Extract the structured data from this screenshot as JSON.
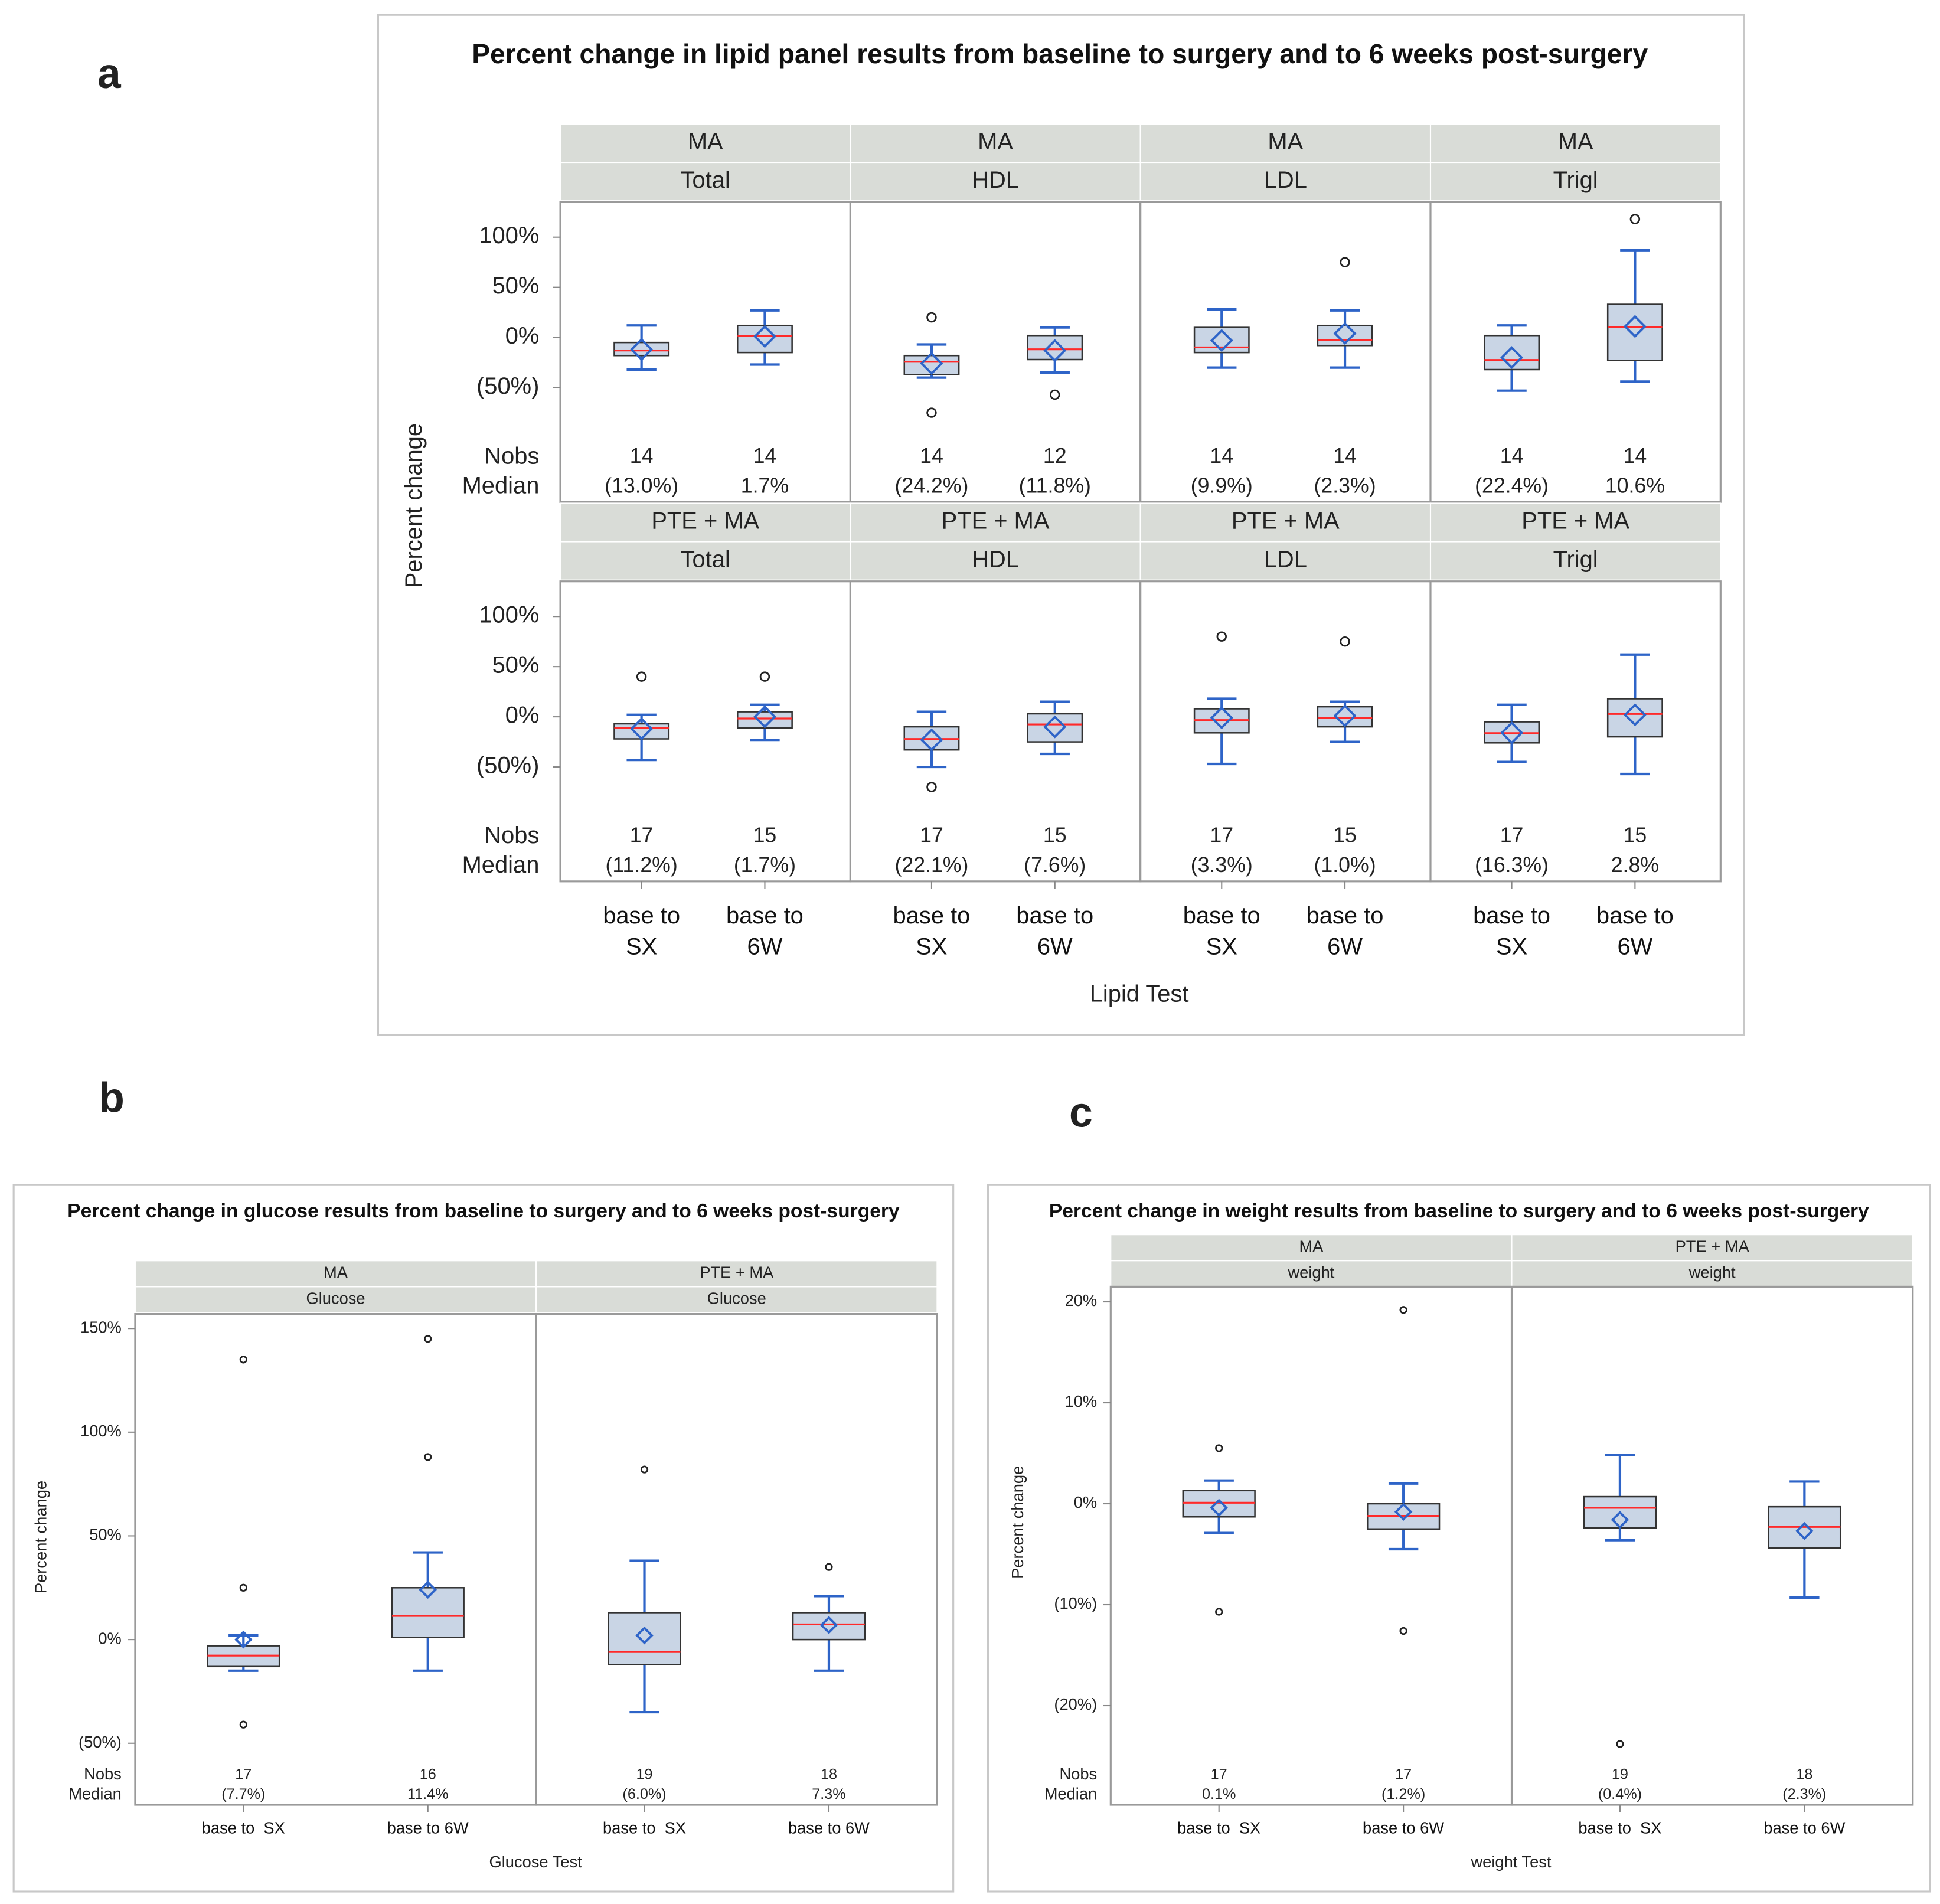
{
  "chart_data": [
    {
      "type": "box",
      "panel_label": "a",
      "title": "Percent change in lipid panel results from baseline to surgery and to 6 weeks post-surgery",
      "y_label": "Percent change",
      "x_label": "Lipid Test",
      "categories": [
        "base to SX",
        "base to 6W"
      ],
      "stat_labels": [
        "Nobs",
        "Median"
      ],
      "ylim": [
        -80,
        135
      ],
      "yticks": [
        {
          "value": 100,
          "label": "100%"
        },
        {
          "value": 50,
          "label": "50%"
        },
        {
          "value": 0,
          "label": "0%"
        },
        {
          "value": -50,
          "label": "(50%)"
        }
      ],
      "box_color": "#c9d5e5",
      "whisker_color": "#2e64c8",
      "median_color": "#ff2a2a",
      "mean_color": "#2e64c8",
      "outlier_color": "#222222",
      "header_color": "#d9dcd7",
      "panels": [
        {
          "group": "MA",
          "test": "Total",
          "boxes": [
            {
              "min": -32,
              "q1": -18,
              "median": -13.0,
              "median_label": "(13.0%)",
              "q3": -5,
              "max": 12,
              "mean": -12,
              "outliers": [],
              "nobs": 14
            },
            {
              "min": -27,
              "q1": -15,
              "median": 1.7,
              "median_label": "1.7%",
              "q3": 12,
              "max": 27,
              "mean": 1,
              "outliers": [],
              "nobs": 14
            }
          ]
        },
        {
          "group": "MA",
          "test": "HDL",
          "boxes": [
            {
              "min": -40,
              "q1": -37,
              "median": -24.2,
              "median_label": "(24.2%)",
              "q3": -18,
              "max": -7,
              "mean": -26,
              "outliers": [
                20,
                -75
              ],
              "nobs": 14
            },
            {
              "min": -35,
              "q1": -22,
              "median": -11.8,
              "median_label": "(11.8%)",
              "q3": 2,
              "max": 10,
              "mean": -13,
              "outliers": [
                -57
              ],
              "nobs": 12
            }
          ]
        },
        {
          "group": "MA",
          "test": "LDL",
          "boxes": [
            {
              "min": -30,
              "q1": -15,
              "median": -9.9,
              "median_label": "(9.9%)",
              "q3": 10,
              "max": 28,
              "mean": -3,
              "outliers": [],
              "nobs": 14
            },
            {
              "min": -30,
              "q1": -8,
              "median": -2.3,
              "median_label": "(2.3%)",
              "q3": 12,
              "max": 27,
              "mean": 4,
              "outliers": [
                75
              ],
              "nobs": 14
            }
          ]
        },
        {
          "group": "MA",
          "test": "Trigl",
          "boxes": [
            {
              "min": -53,
              "q1": -32,
              "median": -22.4,
              "median_label": "(22.4%)",
              "q3": 2,
              "max": 12,
              "mean": -20,
              "outliers": [],
              "nobs": 14
            },
            {
              "min": -44,
              "q1": -23,
              "median": 10.6,
              "median_label": "10.6%",
              "q3": 33,
              "max": 87,
              "mean": 11,
              "outliers": [
                118
              ],
              "nobs": 14
            }
          ]
        },
        {
          "group": "PTE + MA",
          "test": "Total",
          "boxes": [
            {
              "min": -43,
              "q1": -22,
              "median": -11.2,
              "median_label": "(11.2%)",
              "q3": -7,
              "max": 2,
              "mean": -12,
              "outliers": [
                40
              ],
              "nobs": 17
            },
            {
              "min": -23,
              "q1": -11,
              "median": -1.7,
              "median_label": "(1.7%)",
              "q3": 5,
              "max": 12,
              "mean": 0,
              "outliers": [
                40
              ],
              "nobs": 15
            }
          ]
        },
        {
          "group": "PTE + MA",
          "test": "HDL",
          "boxes": [
            {
              "min": -50,
              "q1": -33,
              "median": -22.1,
              "median_label": "(22.1%)",
              "q3": -10,
              "max": 5,
              "mean": -23,
              "outliers": [
                -70
              ],
              "nobs": 17
            },
            {
              "min": -37,
              "q1": -25,
              "median": -7.6,
              "median_label": "(7.6%)",
              "q3": 3,
              "max": 15,
              "mean": -10,
              "outliers": [],
              "nobs": 15
            }
          ]
        },
        {
          "group": "PTE + MA",
          "test": "LDL",
          "boxes": [
            {
              "min": -47,
              "q1": -16,
              "median": -3.3,
              "median_label": "(3.3%)",
              "q3": 8,
              "max": 18,
              "mean": -1,
              "outliers": [
                80
              ],
              "nobs": 17
            },
            {
              "min": -25,
              "q1": -10,
              "median": -1.0,
              "median_label": "(1.0%)",
              "q3": 10,
              "max": 15,
              "mean": 1,
              "outliers": [
                75
              ],
              "nobs": 15
            }
          ]
        },
        {
          "group": "PTE + MA",
          "test": "Trigl",
          "boxes": [
            {
              "min": -45,
              "q1": -26,
              "median": -16.3,
              "median_label": "(16.3%)",
              "q3": -5,
              "max": 12,
              "mean": -16,
              "outliers": [],
              "nobs": 17
            },
            {
              "min": -57,
              "q1": -20,
              "median": 2.8,
              "median_label": "2.8%",
              "q3": 18,
              "max": 62,
              "mean": 2,
              "outliers": [],
              "nobs": 15
            }
          ]
        }
      ]
    },
    {
      "type": "box",
      "panel_label": "b",
      "title": "Percent change in glucose results from baseline to surgery and to 6 weeks post-surgery",
      "y_label": "Percent change",
      "x_label": "Glucose Test",
      "categories": [
        "base to  SX",
        "base to 6W"
      ],
      "stat_labels": [
        "Nobs",
        "Median"
      ],
      "ylim": [
        -55,
        157
      ],
      "yticks": [
        {
          "value": 150,
          "label": "150%"
        },
        {
          "value": 100,
          "label": "100%"
        },
        {
          "value": 50,
          "label": "50%"
        },
        {
          "value": 0,
          "label": "0%"
        },
        {
          "value": -50,
          "label": "(50%)"
        }
      ],
      "box_color": "#c9d5e5",
      "whisker_color": "#2e64c8",
      "median_color": "#ff2a2a",
      "mean_color": "#2e64c8",
      "outlier_color": "#222222",
      "header_color": "#d9dcd7",
      "panels": [
        {
          "group": "MA",
          "test": "Glucose",
          "boxes": [
            {
              "min": -15,
              "q1": -13,
              "median": -7.7,
              "median_label": "(7.7%)",
              "q3": -3,
              "max": 2,
              "mean": 0,
              "outliers": [
                135,
                25,
                -41
              ],
              "nobs": 17
            },
            {
              "min": -15,
              "q1": 1,
              "median": 11.4,
              "median_label": "11.4%",
              "q3": 25,
              "max": 42,
              "mean": 24,
              "outliers": [
                145,
                88
              ],
              "nobs": 16
            }
          ]
        },
        {
          "group": "PTE + MA",
          "test": "Glucose",
          "boxes": [
            {
              "min": -35,
              "q1": -12,
              "median": -6.0,
              "median_label": "(6.0%)",
              "q3": 13,
              "max": 38,
              "mean": 2,
              "outliers": [
                82
              ],
              "nobs": 19
            },
            {
              "min": -15,
              "q1": 0,
              "median": 7.3,
              "median_label": "7.3%",
              "q3": 13,
              "max": 21,
              "mean": 7,
              "outliers": [
                35
              ],
              "nobs": 18
            }
          ]
        }
      ]
    },
    {
      "type": "box",
      "panel_label": "c",
      "title": "Percent change in weight results from baseline to surgery and to 6 weeks post-surgery",
      "y_label": "Percent change",
      "x_label": "weight Test",
      "categories": [
        "base to  SX",
        "base to 6W"
      ],
      "stat_labels": [
        "Nobs",
        "Median"
      ],
      "ylim": [
        -25,
        21.5
      ],
      "yticks": [
        {
          "value": 20,
          "label": "20%"
        },
        {
          "value": 10,
          "label": "10%"
        },
        {
          "value": 0,
          "label": "0%"
        },
        {
          "value": -10,
          "label": "(10%)"
        },
        {
          "value": -20,
          "label": "(20%)"
        }
      ],
      "box_color": "#c9d5e5",
      "whisker_color": "#2e64c8",
      "median_color": "#ff2a2a",
      "mean_color": "#2e64c8",
      "outlier_color": "#222222",
      "header_color": "#d9dcd7",
      "panels": [
        {
          "group": "MA",
          "test": "weight",
          "boxes": [
            {
              "min": -2.9,
              "q1": -1.3,
              "median": 0.1,
              "median_label": "0.1%",
              "q3": 1.3,
              "max": 2.3,
              "mean": -0.4,
              "outliers": [
                5.5,
                -10.7
              ],
              "nobs": 17
            },
            {
              "min": -4.5,
              "q1": -2.5,
              "median": -1.2,
              "median_label": "(1.2%)",
              "q3": 0,
              "max": 2,
              "mean": -0.8,
              "outliers": [
                19.2,
                -12.6
              ],
              "nobs": 17
            }
          ]
        },
        {
          "group": "PTE + MA",
          "test": "weight",
          "boxes": [
            {
              "min": -3.6,
              "q1": -2.4,
              "median": -0.4,
              "median_label": "(0.4%)",
              "q3": 0.7,
              "max": 4.8,
              "mean": -1.6,
              "outliers": [
                -23.8
              ],
              "nobs": 19
            },
            {
              "min": -9.3,
              "q1": -4.4,
              "median": -2.3,
              "median_label": "(2.3%)",
              "q3": -0.3,
              "max": 2.2,
              "mean": -2.7,
              "outliers": [],
              "nobs": 18
            }
          ]
        }
      ]
    }
  ]
}
